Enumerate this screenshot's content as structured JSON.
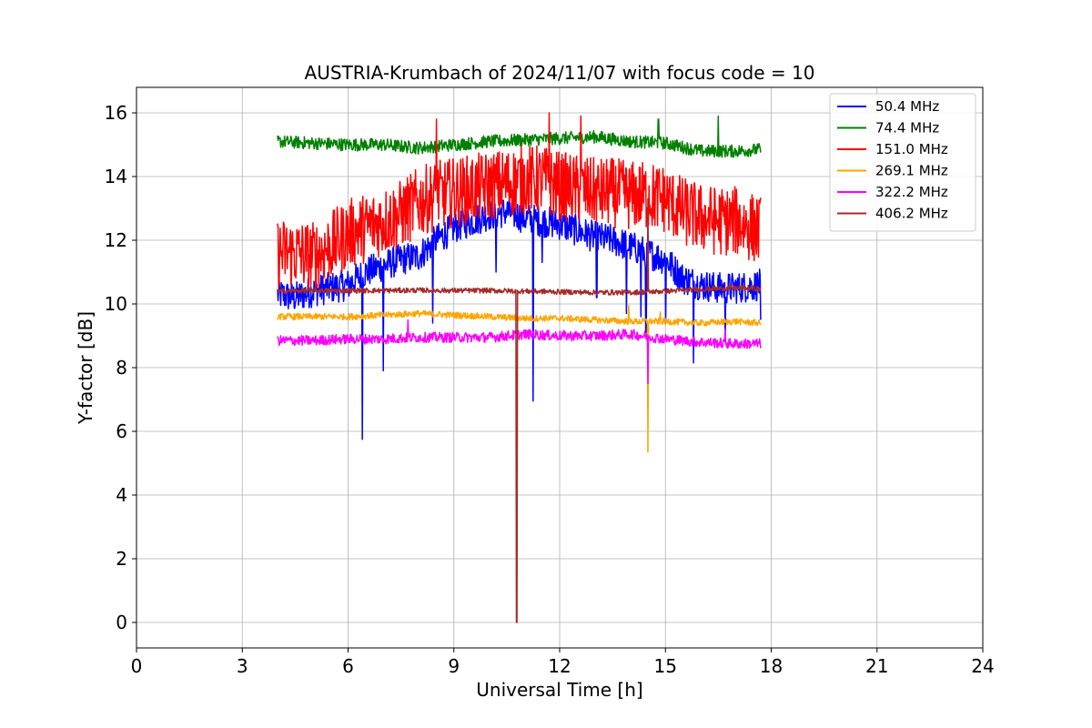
{
  "chart_data": {
    "type": "line",
    "title": "AUSTRIA-Krumbach of 2024/11/07 with focus code = 10",
    "xlabel": "Universal Time [h]",
    "ylabel": "Y-factor [dB]",
    "xlim": [
      0,
      24
    ],
    "ylim": [
      -0.8,
      16.8
    ],
    "xticks": [
      0,
      3,
      6,
      9,
      12,
      15,
      18,
      21,
      24
    ],
    "yticks": [
      0,
      2,
      4,
      6,
      8,
      10,
      12,
      14,
      16
    ],
    "grid": true,
    "legend_position": "top-right",
    "series": [
      {
        "name": " 50.4 MHz",
        "color": "#0000ff",
        "x": [
          4.0,
          4.5,
          5.0,
          5.5,
          6.0,
          6.5,
          7.0,
          7.5,
          8.0,
          8.5,
          9.0,
          9.5,
          10.0,
          10.5,
          11.0,
          11.5,
          12.0,
          12.5,
          13.0,
          13.5,
          14.0,
          14.5,
          15.0,
          15.5,
          16.0,
          16.5,
          17.0,
          17.7
        ],
        "y": [
          10.3,
          10.2,
          10.4,
          10.5,
          10.6,
          11.0,
          11.2,
          11.4,
          11.5,
          12.0,
          12.4,
          12.6,
          12.8,
          12.9,
          12.7,
          12.6,
          12.5,
          12.3,
          12.1,
          12.0,
          11.8,
          11.6,
          11.4,
          10.8,
          10.6,
          10.5,
          10.5,
          10.6
        ],
        "noise": 0.5,
        "spikes": [
          [
            6.4,
            5.75
          ],
          [
            7.0,
            7.9
          ],
          [
            8.4,
            9.4
          ],
          [
            10.2,
            11.0
          ],
          [
            11.25,
            6.95
          ],
          [
            11.5,
            11.3
          ],
          [
            13.05,
            10.2
          ],
          [
            13.9,
            9.7
          ],
          [
            14.3,
            9.6
          ],
          [
            14.45,
            9.1
          ],
          [
            15.0,
            9.4
          ],
          [
            15.8,
            8.15
          ],
          [
            16.7,
            8.8
          ],
          [
            17.7,
            9.5
          ]
        ]
      },
      {
        "name": " 74.4 MHz",
        "color": "#008000",
        "x": [
          4.0,
          5.0,
          6.0,
          7.0,
          8.0,
          9.0,
          10.0,
          11.0,
          12.0,
          13.0,
          14.0,
          15.0,
          16.0,
          17.0,
          17.7
        ],
        "y": [
          15.1,
          15.05,
          15.0,
          15.0,
          14.9,
          15.0,
          15.1,
          15.15,
          15.2,
          15.25,
          15.1,
          15.05,
          14.8,
          14.8,
          14.85
        ],
        "noise": 0.2,
        "spikes": [
          [
            14.8,
            15.8
          ],
          [
            16.5,
            15.9
          ]
        ]
      },
      {
        "name": " 151.0 MHz",
        "color": "#ff0000",
        "x": [
          4.0,
          4.5,
          5.0,
          5.5,
          6.0,
          6.5,
          7.0,
          7.5,
          8.0,
          8.5,
          9.0,
          9.5,
          10.0,
          10.5,
          11.0,
          11.5,
          12.0,
          12.5,
          13.0,
          13.5,
          14.0,
          14.5,
          15.0,
          15.5,
          16.0,
          16.5,
          17.0,
          17.7
        ],
        "y": [
          11.6,
          11.6,
          11.5,
          11.8,
          12.2,
          12.4,
          12.6,
          12.8,
          13.2,
          13.4,
          13.5,
          13.6,
          13.7,
          13.8,
          13.9,
          13.9,
          13.7,
          13.6,
          13.5,
          13.5,
          13.4,
          13.4,
          13.3,
          12.9,
          12.7,
          12.6,
          12.6,
          12.3
        ],
        "noise": 1.1,
        "spikes": [
          [
            8.5,
            15.8
          ],
          [
            11.7,
            16.0
          ],
          [
            12.6,
            15.9
          ]
        ]
      },
      {
        "name": " 269.1 MHz",
        "color": "#ffa500",
        "x": [
          4.0,
          5.0,
          6.0,
          7.0,
          8.0,
          9.0,
          10.0,
          11.0,
          12.0,
          13.0,
          14.0,
          15.0,
          16.0,
          17.0,
          17.7
        ],
        "y": [
          9.6,
          9.6,
          9.6,
          9.65,
          9.7,
          9.65,
          9.6,
          9.55,
          9.55,
          9.5,
          9.45,
          9.45,
          9.4,
          9.45,
          9.4
        ],
        "noise": 0.1,
        "spikes": [
          [
            13.95,
            9.95
          ],
          [
            14.5,
            5.35
          ],
          [
            14.85,
            9.75
          ]
        ]
      },
      {
        "name": " 322.2 MHz",
        "color": "#ff00ff",
        "x": [
          4.0,
          5.0,
          6.0,
          7.0,
          8.0,
          9.0,
          10.0,
          11.0,
          12.0,
          13.0,
          14.0,
          15.0,
          16.0,
          17.0,
          17.7
        ],
        "y": [
          8.85,
          8.85,
          8.9,
          8.9,
          8.95,
          8.95,
          8.95,
          9.05,
          9.0,
          9.0,
          9.05,
          8.9,
          8.8,
          8.75,
          8.75
        ],
        "noise": 0.16,
        "spikes": [
          [
            7.7,
            9.5
          ],
          [
            14.5,
            7.5
          ],
          [
            16.7,
            9.2
          ]
        ]
      },
      {
        "name": " 406.2 MHz",
        "color": "#a52a2a",
        "x": [
          4.0,
          5.0,
          6.0,
          7.0,
          8.0,
          9.0,
          10.0,
          11.0,
          12.0,
          13.0,
          14.0,
          15.0,
          16.0,
          17.0,
          17.7
        ],
        "y": [
          10.4,
          10.42,
          10.42,
          10.42,
          10.43,
          10.42,
          10.42,
          10.4,
          10.38,
          10.36,
          10.36,
          10.4,
          10.46,
          10.5,
          10.48
        ],
        "noise": 0.08,
        "spikes": [
          [
            10.78,
            0.0
          ],
          [
            14.5,
            13.3
          ]
        ]
      }
    ]
  }
}
